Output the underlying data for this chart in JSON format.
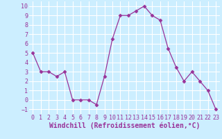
{
  "x": [
    0,
    1,
    2,
    3,
    4,
    5,
    6,
    7,
    8,
    9,
    10,
    11,
    12,
    13,
    14,
    15,
    16,
    17,
    18,
    19,
    20,
    21,
    22,
    23
  ],
  "y": [
    5,
    3,
    3,
    2.5,
    3,
    0,
    0,
    0,
    -0.5,
    2.5,
    6.5,
    9,
    9,
    9.5,
    10,
    9,
    8.5,
    5.5,
    3.5,
    2,
    3,
    2,
    1,
    -1
  ],
  "line_color": "#993399",
  "marker": "D",
  "marker_size": 2.5,
  "bg_color": "#cceeff",
  "grid_color": "#ffffff",
  "xlabel": "Windchill (Refroidissement éolien,°C)",
  "xlim": [
    -0.5,
    23.5
  ],
  "ylim": [
    -1.5,
    10.5
  ],
  "xticks": [
    0,
    1,
    2,
    3,
    4,
    5,
    6,
    7,
    8,
    9,
    10,
    11,
    12,
    13,
    14,
    15,
    16,
    17,
    18,
    19,
    20,
    21,
    22,
    23
  ],
  "yticks": [
    -1,
    0,
    1,
    2,
    3,
    4,
    5,
    6,
    7,
    8,
    9,
    10
  ],
  "tick_fontsize": 6,
  "xlabel_fontsize": 7,
  "label_color": "#993399",
  "tick_color": "#993399"
}
